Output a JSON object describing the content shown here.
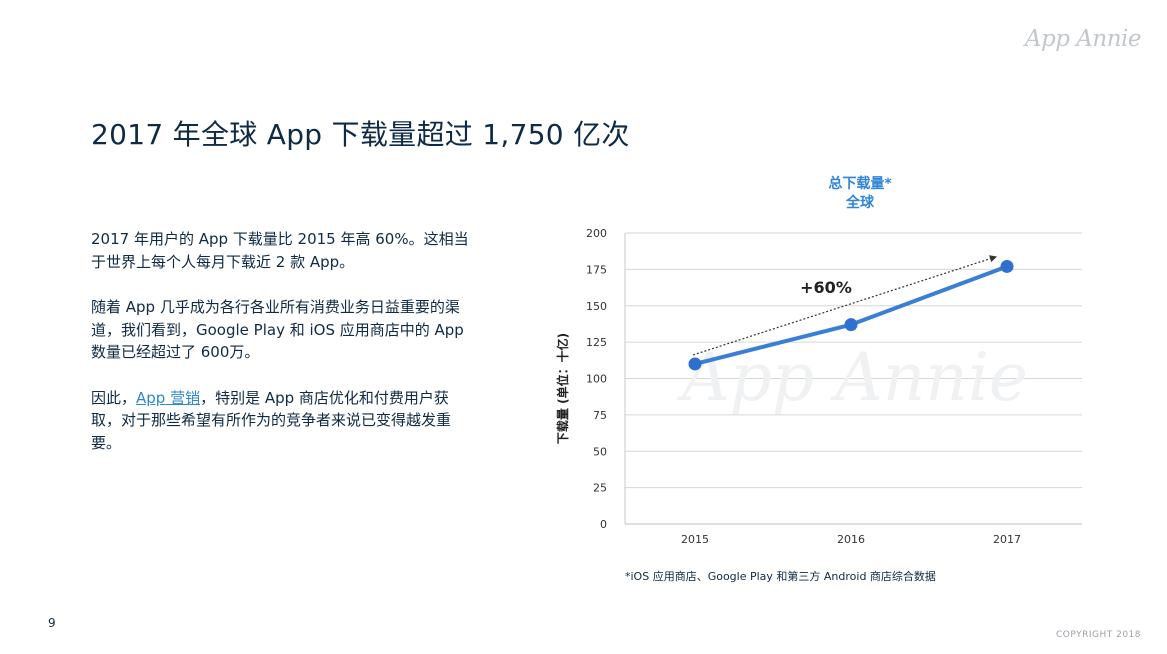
{
  "brand": {
    "logo_text": "App Annie",
    "watermark": "App Annie"
  },
  "slide": {
    "title": "2017 年全球 App 下载量超过 1,750 亿次",
    "page_number": "9",
    "copyright": "COPYRIGHT 2018"
  },
  "body": {
    "para1": "2017 年用户的 App 下载量比 2015 年高 60%。这相当于世界上每个人每月下载近 2 款 App。",
    "para2": "随着 App 几乎成为各行各业所有消费业务日益重要的渠道，我们看到，Google Play 和 iOS 应用商店中的 App 数量已经超过了 600万。",
    "para3_pre": "因此，",
    "para3_link": "App 营销",
    "para3_post": "，特别是 App 商店优化和付费用户获取，对于那些希望有所作为的竞争者来说已变得越发重要。"
  },
  "chart_title": {
    "line1": "总下载量*",
    "line2": "全球"
  },
  "chart_data": {
    "type": "line",
    "categories": [
      "2015",
      "2016",
      "2017"
    ],
    "series": [
      {
        "values": [
          110,
          137,
          177
        ]
      }
    ],
    "ylabel": "下载量 (单位：十亿)",
    "ylim": [
      0,
      200
    ],
    "yticks": [
      0,
      25,
      50,
      75,
      100,
      125,
      150,
      175,
      200
    ],
    "grid": true,
    "annotation": "+60%",
    "line_color": "#3a7fd5",
    "point_color": "#2e6fd0"
  },
  "footnote": "*iOS 应用商店、Google Play 和第三方 Android 商店综合数据"
}
